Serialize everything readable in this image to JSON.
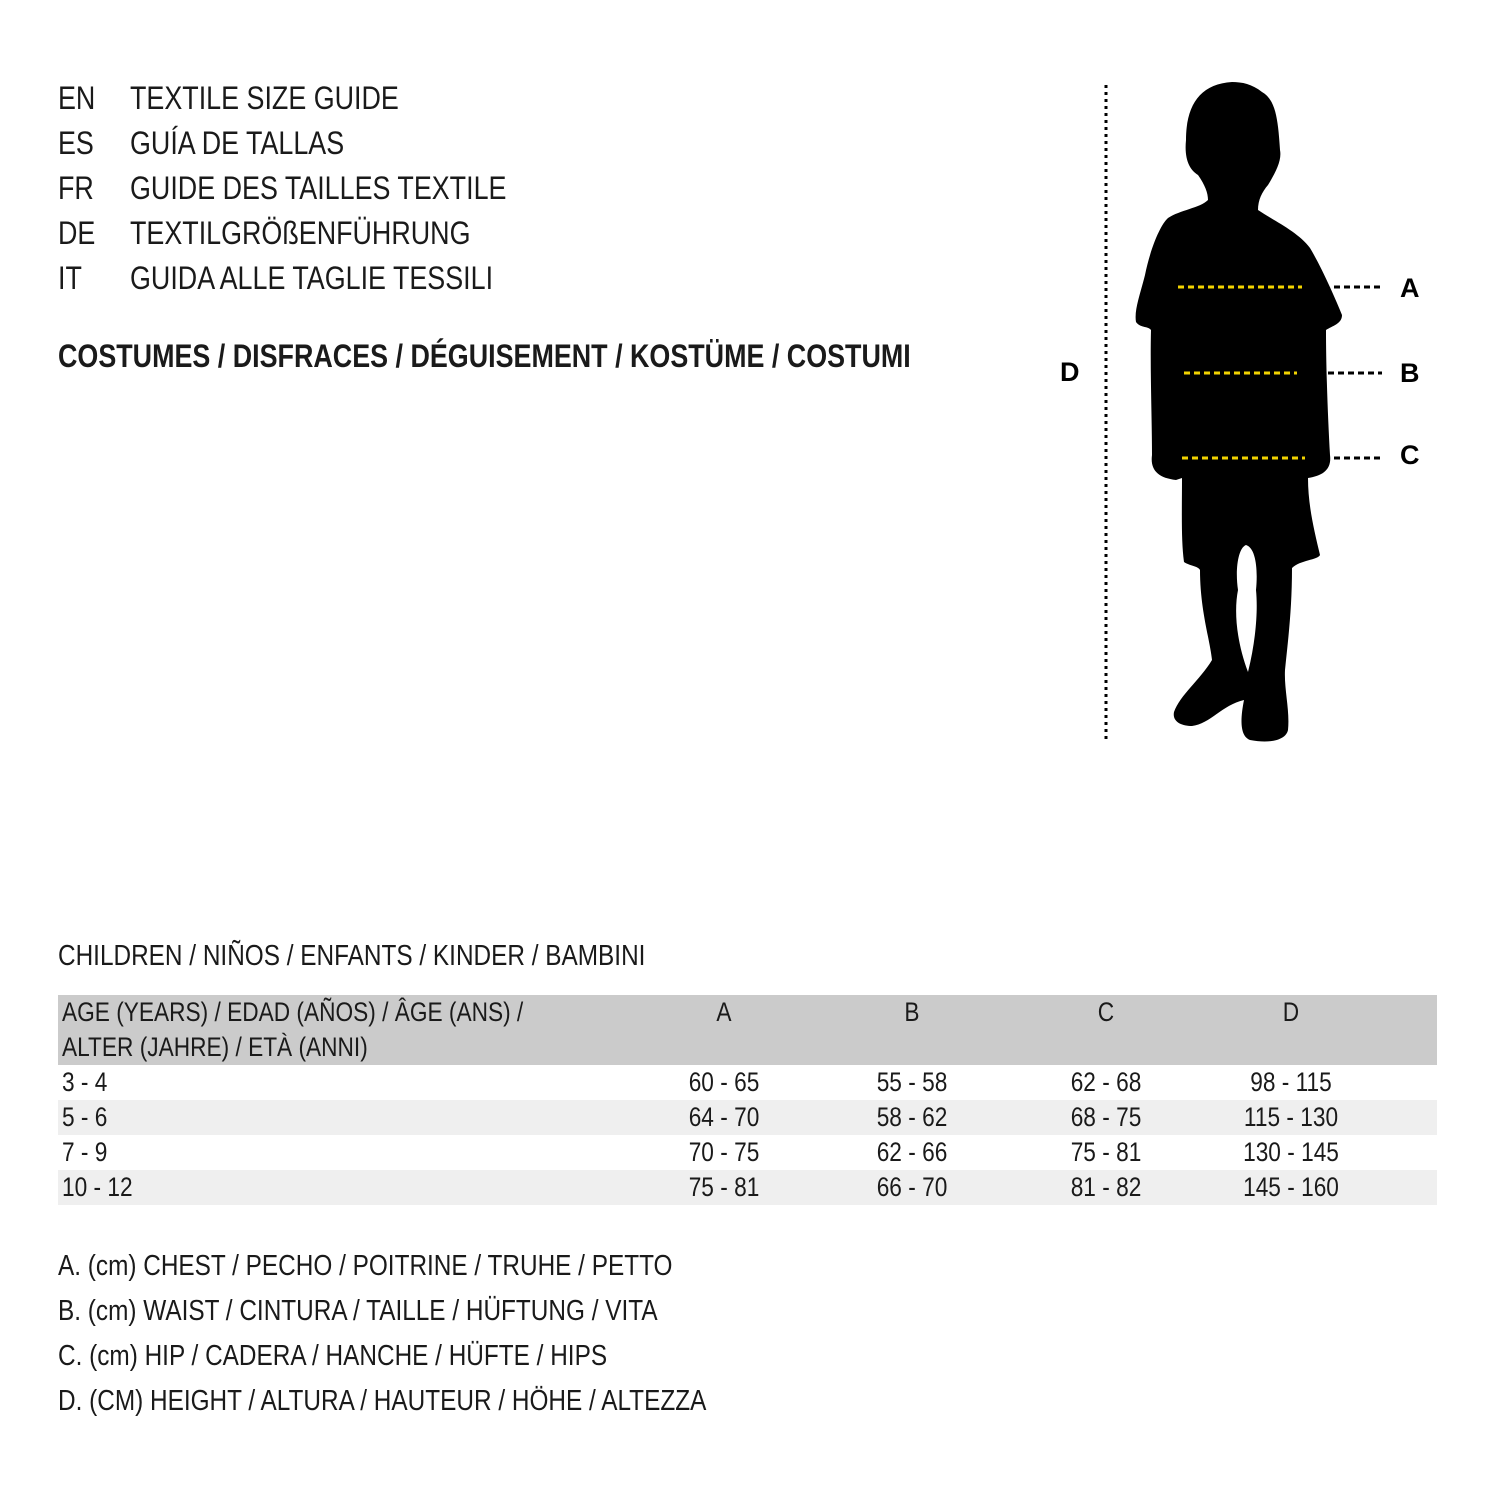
{
  "titles": [
    {
      "code": "EN",
      "text": "TEXTILE SIZE GUIDE"
    },
    {
      "code": "ES",
      "text": "GUÍA DE TALLAS"
    },
    {
      "code": "FR",
      "text": "GUIDE DES TAILLES TEXTILE"
    },
    {
      "code": "DE",
      "text": "TEXTILGRÖßENFÜHRUNG"
    },
    {
      "code": "IT",
      "text": "GUIDA ALLE TAGLIE TESSILI"
    }
  ],
  "category": "COSTUMES / DISFRACES / DÉGUISEMENT / KOSTÜME / COSTUMI",
  "figure": {
    "labels": {
      "a": "A",
      "b": "B",
      "c": "C",
      "d": "D"
    },
    "measure_line_color": "#f2d300",
    "silhouette_color": "#000000"
  },
  "section": "CHILDREN / NIÑOS / ENFANTS / KINDER / BAMBINI",
  "table": {
    "header": {
      "age_line1": "AGE (YEARS) / EDAD (AÑOS) / ÂGE (ANS) /",
      "age_line2": "ALTER (JAHRE) / ETÀ (ANNI)",
      "a": "A",
      "b": "B",
      "c": "C",
      "d": "D"
    },
    "rows": [
      {
        "age": "3 - 4",
        "a": "60 - 65",
        "b": "55 - 58",
        "c": "62 - 68",
        "d": "98 - 115"
      },
      {
        "age": "5 - 6",
        "a": "64 - 70",
        "b": "58 - 62",
        "c": "68 - 75",
        "d": "115 - 130"
      },
      {
        "age": "7 - 9",
        "a": "70 - 75",
        "b": "62 - 66",
        "c": "75 - 81",
        "d": "130 - 145"
      },
      {
        "age": "10 - 12",
        "a": "75 - 81",
        "b": "66 - 70",
        "c": "81 - 82",
        "d": "145 - 160"
      }
    ]
  },
  "legend": [
    "A. (cm) CHEST / PECHO / POITRINE / TRUHE / PETTO",
    "B. (cm) WAIST / CINTURA / TAILLE / HÜFTUNG / VITA",
    "C. (cm) HIP / CADERA / HANCHE / HÜFTE / HIPS",
    "D. (CM) HEIGHT / ALTURA / HAUTEUR / HÖHE / ALTEZZA"
  ]
}
